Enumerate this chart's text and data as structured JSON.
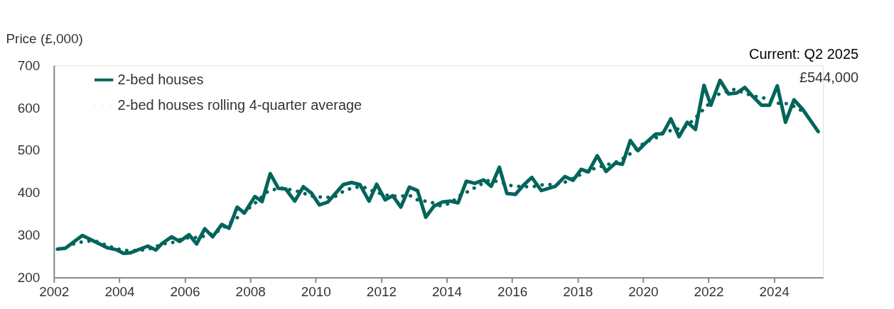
{
  "chart_data": {
    "type": "line",
    "ylabel": "Price (£,000)",
    "annotations": [
      "Current: Q2 2025",
      "£544,000"
    ],
    "xlim": [
      2002,
      2025.5
    ],
    "xticks": [
      2002,
      2004,
      2006,
      2008,
      2010,
      2012,
      2014,
      2016,
      2018,
      2020,
      2022,
      2024
    ],
    "ylim": [
      200,
      700
    ],
    "yticks": [
      200,
      300,
      400,
      500,
      600,
      700
    ],
    "grid": false,
    "legend": "top left",
    "series": [
      {
        "name": "2-bed houses",
        "color": "#00655a",
        "line_style": "solid",
        "x": [
          2002.11,
          2002.35,
          2002.87,
          2003.64,
          2003.93,
          2004.13,
          2004.33,
          2004.87,
          2005.12,
          2005.3,
          2005.6,
          2005.84,
          2006.13,
          2006.36,
          2006.61,
          2006.85,
          2007.13,
          2007.35,
          2007.6,
          2007.82,
          2008.14,
          2008.36,
          2008.61,
          2008.86,
          2009.08,
          2009.36,
          2009.62,
          2009.87,
          2010.11,
          2010.37,
          2010.84,
          2011.09,
          2011.35,
          2011.63,
          2011.86,
          2012.12,
          2012.35,
          2012.6,
          2012.86,
          2013.11,
          2013.36,
          2013.61,
          2013.87,
          2014.12,
          2014.35,
          2014.6,
          2014.86,
          2015.13,
          2015.36,
          2015.61,
          2015.84,
          2016.1,
          2016.35,
          2016.6,
          2016.89,
          2017.32,
          2017.61,
          2017.86,
          2018.11,
          2018.33,
          2018.6,
          2018.87,
          2019.16,
          2019.37,
          2019.61,
          2019.84,
          2020.09,
          2020.38,
          2020.6,
          2020.85,
          2021.1,
          2021.35,
          2021.6,
          2021.86,
          2022.07,
          2022.35,
          2022.61,
          2022.86,
          2023.11,
          2023.36,
          2023.62,
          2023.86,
          2024.1,
          2024.35,
          2024.61,
          2024.88,
          2025.35
        ],
        "values": [
          267,
          269,
          299,
          270,
          265,
          257,
          258,
          274,
          265,
          280,
          296,
          285,
          301,
          279,
          315,
          296,
          325,
          316,
          366,
          352,
          391,
          379,
          445,
          410,
          409,
          380,
          414,
          399,
          371,
          378,
          419,
          424,
          419,
          380,
          420,
          383,
          393,
          366,
          413,
          405,
          342,
          368,
          378,
          380,
          376,
          427,
          422,
          430,
          415,
          460,
          398,
          396,
          418,
          436,
          405,
          415,
          438,
          429,
          455,
          449,
          487,
          450,
          470,
          467,
          523,
          499,
          518,
          538,
          539,
          574,
          532,
          566,
          549,
          653,
          606,
          665,
          633,
          635,
          648,
          626,
          606,
          606,
          652,
          566,
          619,
          596,
          544
        ]
      },
      {
        "name": "2-bed houses rolling 4-quarter average",
        "color": "#00655a",
        "line_style": "dotted",
        "x": [
          2002.6,
          2002.96,
          2003.32,
          2003.63,
          2003.95,
          2004.3,
          2004.65,
          2005.0,
          2005.31,
          2005.66,
          2005.96,
          2006.32,
          2006.65,
          2006.99,
          2007.25,
          2007.54,
          2007.8,
          2008.07,
          2008.55,
          2008.93,
          2009.24,
          2009.55,
          2009.87,
          2010.23,
          2010.55,
          2010.84,
          2011.17,
          2011.5,
          2011.84,
          2012.16,
          2012.5,
          2012.86,
          2013.13,
          2013.48,
          2013.81,
          2014.12,
          2014.37,
          2014.69,
          2014.98,
          2015.29,
          2015.61,
          2015.94,
          2016.28,
          2016.62,
          2016.96,
          2017.32,
          2017.67,
          2017.97,
          2018.27,
          2018.58,
          2018.91,
          2019.25,
          2019.54,
          2019.8,
          2020.06,
          2020.38,
          2020.63,
          2020.96,
          2021.28,
          2021.55,
          2021.78,
          2022.02,
          2022.23,
          2022.51,
          2022.81,
          2023.12,
          2023.43,
          2023.77,
          2024.07,
          2024.39,
          2024.7,
          2024.97
        ],
        "values": [
          279,
          286,
          285,
          275,
          267,
          263,
          264,
          269,
          279,
          283,
          293,
          294,
          298,
          308,
          322,
          337,
          354,
          370,
          404,
          411,
          407,
          401,
          392,
          389,
          389,
          403,
          413,
          412,
          401,
          394,
          391,
          394,
          382,
          379,
          369,
          375,
          392,
          404,
          417,
          429,
          426,
          417,
          414,
          414,
          419,
          419,
          426,
          438,
          450,
          459,
          466,
          474,
          488,
          503,
          519,
          528,
          543,
          548,
          555,
          572,
          591,
          610,
          630,
          637,
          644,
          634,
          627,
          622,
          611,
          610,
          601,
          586
        ]
      }
    ]
  }
}
